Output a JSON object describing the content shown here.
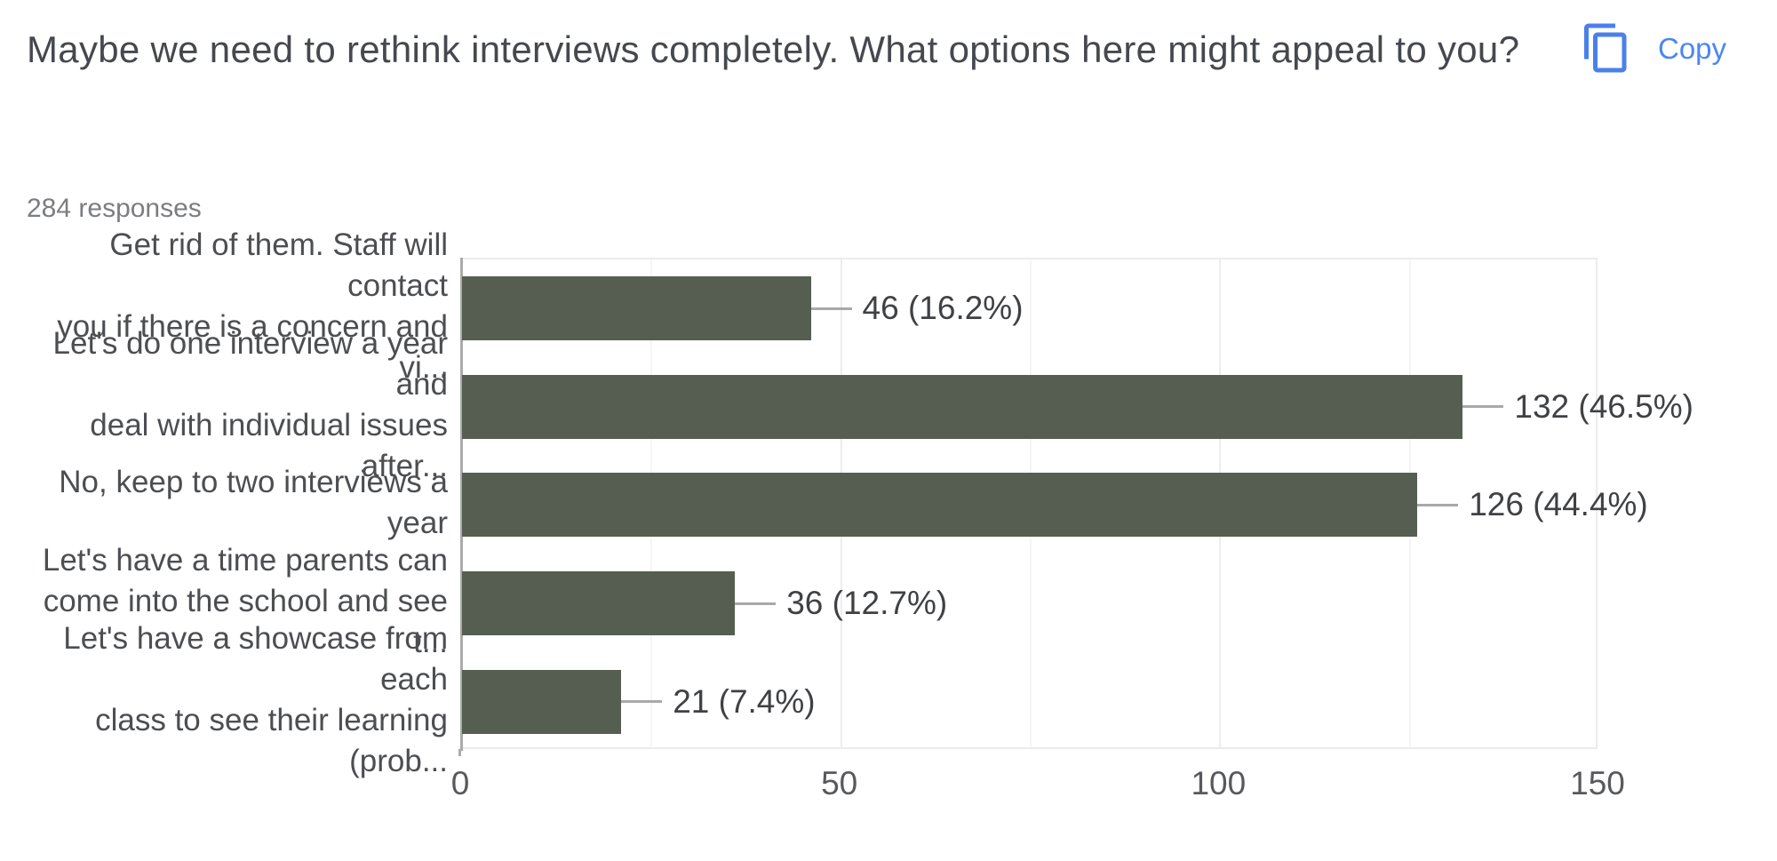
{
  "header": {
    "title": "Maybe we need to rethink interviews completely. What options here might appeal to you?",
    "responses_count": "284 responses",
    "copy_button_label": "Copy"
  },
  "chart_data": {
    "type": "bar",
    "orientation": "horizontal",
    "title": "Maybe we need to rethink interviews completely. What options here might appeal to you?",
    "subtitle": "284 responses",
    "categories": [
      "Get rid of them. Staff will contact you if there is a concern and vi...",
      "Let's do one interview a year and deal with individual issues after...",
      "No, keep to two interviews a year",
      "Let's have a time parents can come into the school and see t...",
      "Let's have a showcase from each class to see their learning (prob..."
    ],
    "categories_display": [
      "Get rid of them. Staff will contact\nyou if there is a concern and vi...",
      "Let's do one interview a year and\ndeal with individual issues after...",
      "No, keep to two interviews a year",
      "Let's have a time parents can\ncome into the school and see t...",
      "Let's have a showcase from each\nclass to see their learning (prob..."
    ],
    "values": [
      46,
      132,
      126,
      36,
      21
    ],
    "percentages": [
      16.2,
      46.5,
      44.4,
      12.7,
      7.4
    ],
    "value_labels": [
      "46 (16.2%)",
      "132 (46.5%)",
      "126 (44.4%)",
      "36 (12.7%)",
      "21 (7.4%)"
    ],
    "xlabel": "",
    "ylabel": "",
    "xlim": [
      0,
      150
    ],
    "x_ticks": [
      0,
      50,
      100,
      150
    ],
    "grid_interval": 25,
    "grid": "on",
    "legend": "none",
    "bar_color": "#565e52"
  },
  "layout_colors": {
    "accent_blue": "#4c86f0",
    "bar": "#565e52",
    "axis_line": "#ababab",
    "gridline_major": "#ededed",
    "gridline_minor": "#f5f5f5"
  }
}
